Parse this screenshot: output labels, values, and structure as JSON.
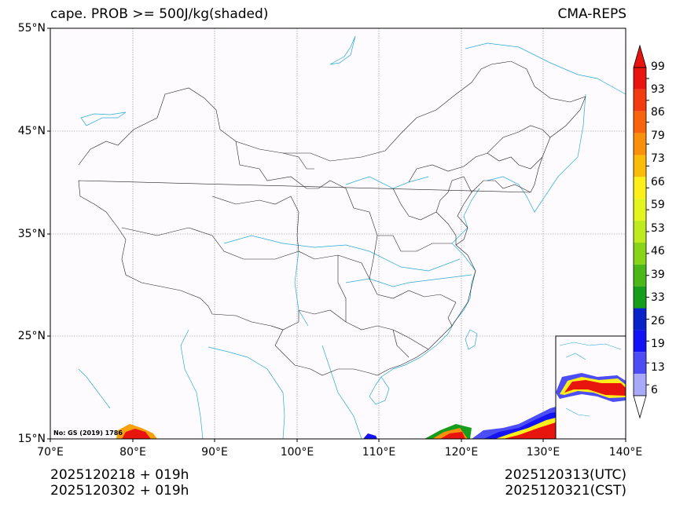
{
  "header": {
    "title": "cape. PROB >= 500J/kg(shaded)",
    "model": "CMA-REPS"
  },
  "axes": {
    "lat_labels": [
      "55°N",
      "45°N",
      "35°N",
      "25°N",
      "15°N"
    ],
    "lon_labels": [
      "70°E",
      "80°E",
      "90°E",
      "100°E",
      "110°E",
      "120°E",
      "130°E",
      "140°E"
    ]
  },
  "colorbar": {
    "labels": [
      "99",
      "93",
      "86",
      "79",
      "73",
      "66",
      "59",
      "53",
      "46",
      "39",
      "33",
      "26",
      "19",
      "13",
      "6"
    ],
    "colors": [
      "#e8150f",
      "#f23b0e",
      "#f8640c",
      "#f9900c",
      "#fbbb0b",
      "#fdf01a",
      "#e2f51e",
      "#bfea1d",
      "#88d41a",
      "#4cb817",
      "#169d1c",
      "#0a23c8",
      "#1313f5",
      "#4d4df5",
      "#a9a9f9"
    ],
    "over_color": "#e8150f",
    "under_color": "#ffffff"
  },
  "stamp": "No: GS (2019) 1786",
  "footer": {
    "init_utc": "2025120218  +  019h",
    "init_cst": "2025120302  +  019h",
    "valid_utc": "2025120313(UTC)",
    "valid_cst": "2025120321(CST)"
  }
}
